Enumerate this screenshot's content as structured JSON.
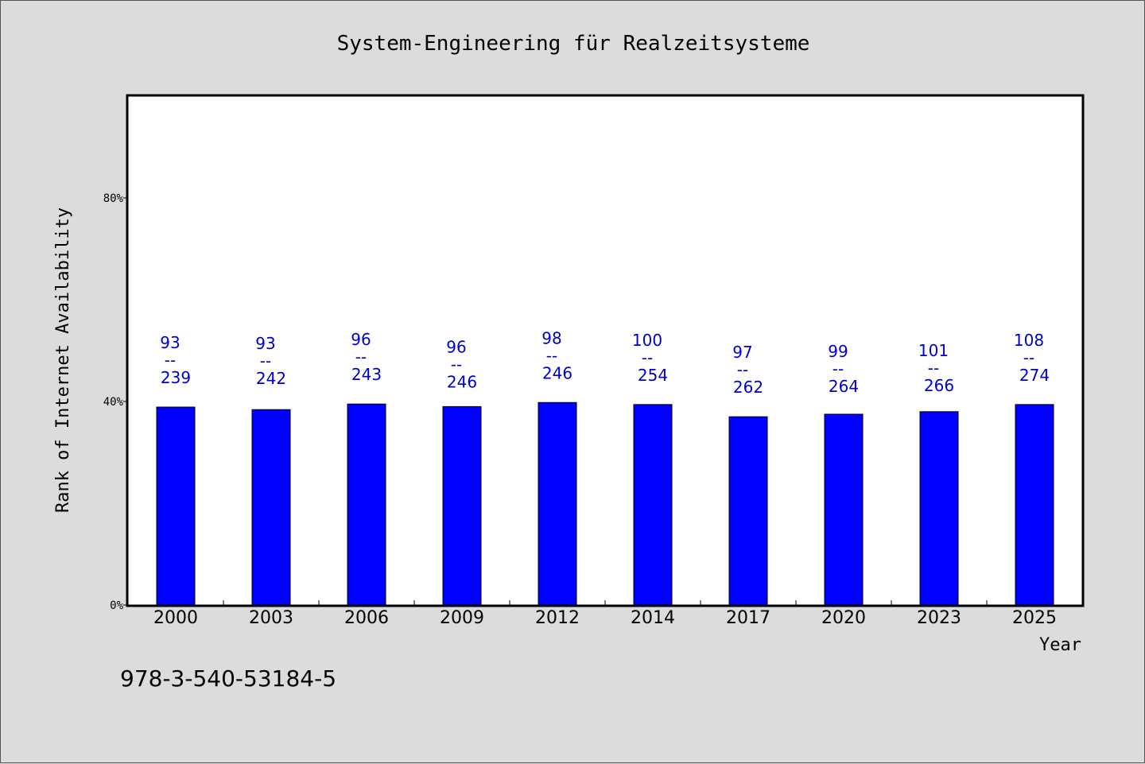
{
  "chart_data": {
    "type": "bar",
    "title": "System-Engineering für Realzeitsysteme",
    "xlabel": "Year",
    "ylabel": "Rank of Internet Availability",
    "categories": [
      "2000",
      "2003",
      "2006",
      "2009",
      "2012",
      "2014",
      "2017",
      "2020",
      "2023",
      "2025"
    ],
    "series": [
      {
        "values": [
          0.389,
          0.384,
          0.395,
          0.39,
          0.398,
          0.394,
          0.37,
          0.375,
          0.38,
          0.394
        ]
      }
    ],
    "data_labels": [
      {
        "top": "93",
        "sep": "--",
        "bottom": "239"
      },
      {
        "top": "93",
        "sep": "--",
        "bottom": "242"
      },
      {
        "top": "96",
        "sep": "--",
        "bottom": "243"
      },
      {
        "top": "96",
        "sep": "--",
        "bottom": "246"
      },
      {
        "top": "98",
        "sep": "--",
        "bottom": "246"
      },
      {
        "top": "100",
        "sep": "--",
        "bottom": "254"
      },
      {
        "top": "97",
        "sep": "--",
        "bottom": "262"
      },
      {
        "top": "99",
        "sep": "--",
        "bottom": "264"
      },
      {
        "top": "101",
        "sep": "--",
        "bottom": "266"
      },
      {
        "top": "108",
        "sep": "--",
        "bottom": "274"
      }
    ],
    "yticks": [
      {
        "value": 0,
        "label": "0%"
      },
      {
        "value": 0.4,
        "label": "40%"
      },
      {
        "value": 0.8,
        "label": "80%"
      }
    ],
    "ylim": [
      0,
      1.0
    ],
    "grid": false,
    "legend": "none",
    "bar_color": "#0000ff",
    "label_color": "#0000cc"
  },
  "footer": {
    "isbn": "978-3-540-53184-5"
  }
}
